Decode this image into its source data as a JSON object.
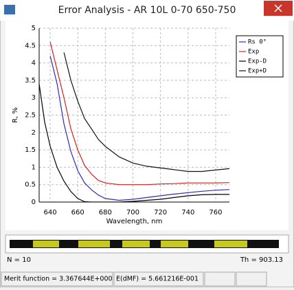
{
  "window": {
    "title": "Error Analysis - AR 10L 0-70 650-750"
  },
  "chart_data": {
    "type": "line",
    "xlabel": "Wavelength, nm",
    "ylabel": "R, %",
    "x": [
      632,
      636,
      640,
      645,
      650,
      655,
      660,
      665,
      670,
      675,
      680,
      690,
      700,
      710,
      720,
      730,
      740,
      750,
      760,
      770
    ],
    "series": [
      {
        "name": "Rs 0°",
        "color": "#2b2bb8",
        "values": [
          null,
          null,
          4.2,
          3.4,
          2.25,
          1.45,
          0.9,
          0.55,
          0.35,
          0.2,
          0.1,
          0.05,
          0.08,
          0.13,
          0.18,
          0.23,
          0.27,
          0.31,
          0.34,
          0.36
        ]
      },
      {
        "name": "Exp",
        "color": "#d42020",
        "values": [
          null,
          null,
          4.6,
          3.8,
          3.0,
          2.1,
          1.5,
          1.05,
          0.8,
          0.62,
          0.55,
          0.5,
          0.5,
          0.5,
          0.52,
          0.53,
          0.55,
          0.55,
          0.55,
          0.56
        ]
      },
      {
        "name": "Exp-D",
        "color": "#000000",
        "values": [
          3.4,
          2.3,
          1.6,
          1.0,
          0.6,
          0.3,
          0.1,
          0.01,
          0,
          0,
          0,
          0,
          0.02,
          0.05,
          0.08,
          0.13,
          0.18,
          0.21,
          0.22,
          0.22
        ]
      },
      {
        "name": "Exp+D",
        "color": "#111111",
        "values": [
          null,
          null,
          null,
          null,
          4.3,
          3.5,
          2.9,
          2.4,
          2.1,
          1.8,
          1.6,
          1.3,
          1.12,
          1.03,
          0.98,
          0.93,
          0.88,
          0.88,
          0.92,
          0.96
        ]
      }
    ],
    "xlim": [
      632,
      770
    ],
    "xticks": [
      640,
      660,
      680,
      700,
      720,
      740,
      760
    ],
    "ylim": [
      0,
      5
    ],
    "yticks": [
      0,
      0.5,
      1,
      1.5,
      2,
      2.5,
      3,
      3.5,
      4,
      4.5,
      5
    ],
    "grid": true,
    "legend": "top-right"
  },
  "info": {
    "n": "N = 10",
    "th": "Th = 903.13"
  },
  "status": {
    "merit": "Merit function = 3.367644E+000",
    "edmf": "E(dMF) = 5.661216E-001"
  }
}
